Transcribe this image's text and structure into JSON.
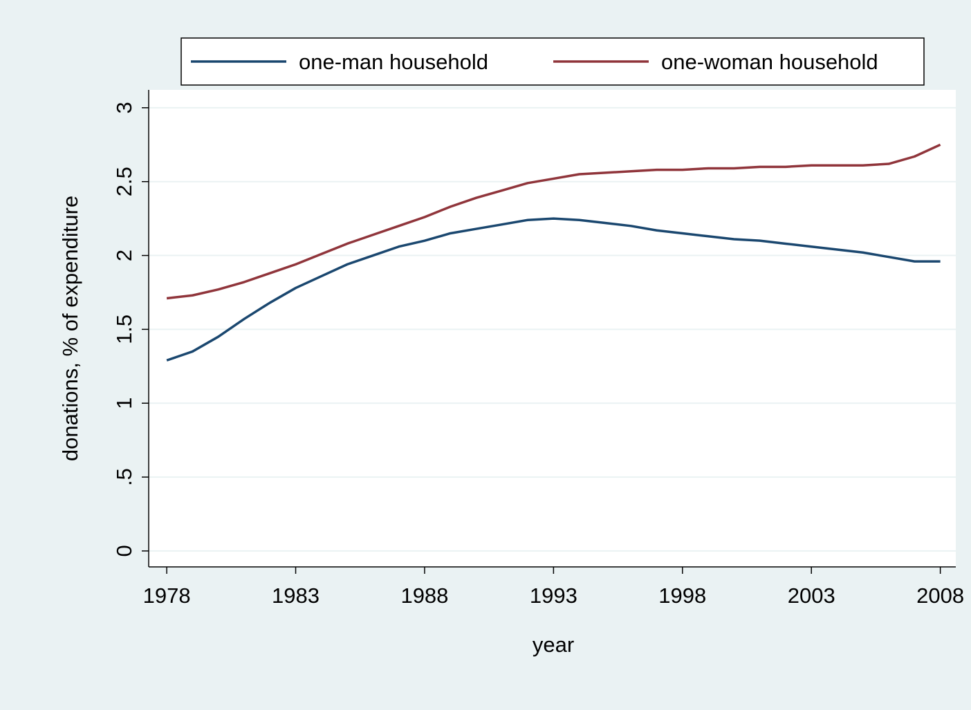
{
  "chart_data": {
    "type": "line",
    "xlabel": "year",
    "ylabel": "donations, % of expenditure",
    "x": [
      1978,
      1979,
      1980,
      1981,
      1982,
      1983,
      1984,
      1985,
      1986,
      1987,
      1988,
      1989,
      1990,
      1991,
      1992,
      1993,
      1994,
      1995,
      1996,
      1997,
      1998,
      1999,
      2000,
      2001,
      2002,
      2003,
      2004,
      2005,
      2006,
      2007,
      2008
    ],
    "series": [
      {
        "name": "one-man household",
        "color": "#1a476f",
        "values": [
          1.29,
          1.35,
          1.45,
          1.57,
          1.68,
          1.78,
          1.86,
          1.94,
          2.0,
          2.06,
          2.1,
          2.15,
          2.18,
          2.21,
          2.24,
          2.25,
          2.24,
          2.22,
          2.2,
          2.17,
          2.15,
          2.13,
          2.11,
          2.1,
          2.08,
          2.06,
          2.04,
          2.02,
          1.99,
          1.96,
          1.96
        ]
      },
      {
        "name": "one-woman household",
        "color": "#90353b",
        "values": [
          1.71,
          1.73,
          1.77,
          1.82,
          1.88,
          1.94,
          2.01,
          2.08,
          2.14,
          2.2,
          2.26,
          2.33,
          2.39,
          2.44,
          2.49,
          2.52,
          2.55,
          2.56,
          2.57,
          2.58,
          2.58,
          2.59,
          2.59,
          2.6,
          2.6,
          2.61,
          2.61,
          2.61,
          2.62,
          2.67,
          2.75
        ]
      }
    ],
    "xlim": [
      1977.3,
      2008.6
    ],
    "xticks": [
      1978,
      1983,
      1988,
      1993,
      1998,
      2003,
      2008
    ],
    "ylim": [
      -0.108,
      3.121
    ],
    "yticks": [
      0,
      {
        "value": 0.5,
        "label": ".5"
      },
      1,
      1.5,
      2,
      2.5,
      3
    ],
    "grid": true,
    "legend": "top"
  }
}
